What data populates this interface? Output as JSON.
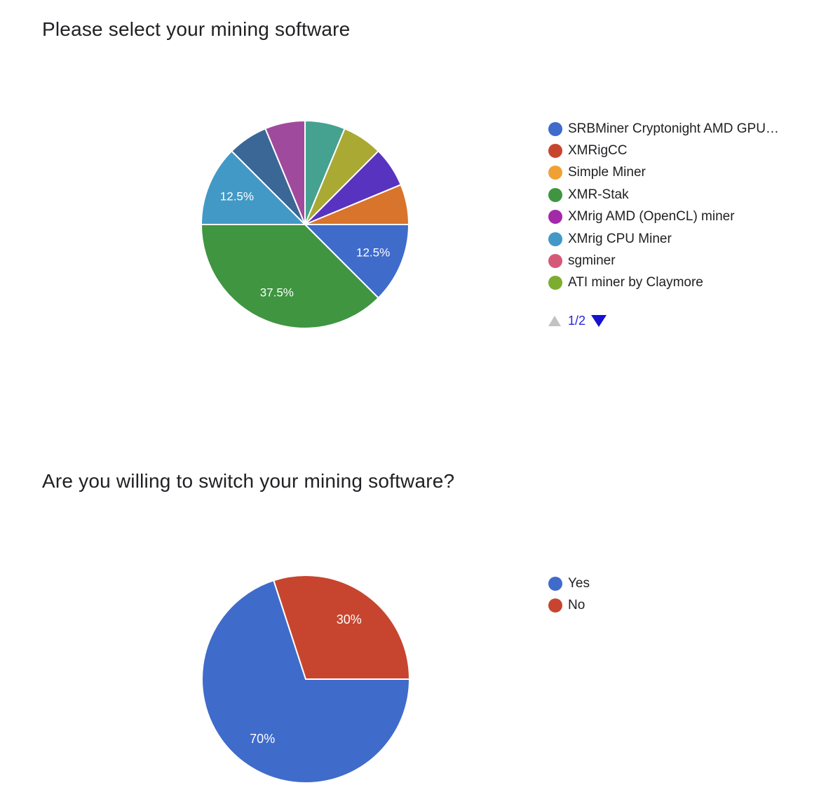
{
  "page": {
    "background": "#ffffff"
  },
  "charts": [
    {
      "title": "Please select your mining software",
      "legend": {
        "items": [
          {
            "label": "SRBMiner Cryptonight AMD GPU…",
            "color": "#3F6BCB"
          },
          {
            "label": "XMRigCC",
            "color": "#C7452E"
          },
          {
            "label": "Simple Miner",
            "color": "#F0A136"
          },
          {
            "label": "XMR-Stak",
            "color": "#3F9540"
          },
          {
            "label": "XMrig AMD (OpenCL) miner",
            "color": "#A229A8"
          },
          {
            "label": "XMrig CPU Miner",
            "color": "#4299C6"
          },
          {
            "label": "sgminer",
            "color": "#D65878"
          },
          {
            "label": "ATI miner by Claymore",
            "color": "#7DAD30"
          }
        ],
        "pagination": {
          "label": "1/2",
          "text_color": "#2525D6",
          "prev_arrow_color": "#C2C2C4",
          "next_arrow_color": "#1512D0"
        }
      }
    },
    {
      "title": "Are you willing to switch your mining software?",
      "legend": {
        "items": [
          {
            "label": "Yes",
            "color": "#3F6BCB"
          },
          {
            "label": "No",
            "color": "#C7452E"
          }
        ]
      }
    }
  ],
  "chart_data": [
    {
      "type": "pie",
      "title": "Please select your mining software",
      "legend_position": "right",
      "start_angle_deg": 90,
      "direction": "clockwise",
      "slice_label_color": "#ffffff",
      "slices": [
        {
          "label": "SRBMiner Cryptonight AMD GPU…",
          "value_pct": 12.5,
          "color": "#3F6BCB",
          "shown_label": "12.5%"
        },
        {
          "label": "XMR-Stak",
          "value_pct": 37.5,
          "color": "#3F9540",
          "shown_label": "37.5%"
        },
        {
          "label": "XMrig CPU Miner",
          "value_pct": 12.5,
          "color": "#4299C6",
          "shown_label": "12.5%"
        },
        {
          "label": "",
          "value_pct": 6.25,
          "color": "#3A6795",
          "shown_label": ""
        },
        {
          "label": "",
          "value_pct": 6.25,
          "color": "#A04A9D",
          "shown_label": ""
        },
        {
          "label": "",
          "value_pct": 6.25,
          "color": "#45A290",
          "shown_label": ""
        },
        {
          "label": "",
          "value_pct": 6.25,
          "color": "#A9A934",
          "shown_label": ""
        },
        {
          "label": "",
          "value_pct": 6.25,
          "color": "#5833BF",
          "shown_label": ""
        },
        {
          "label": "",
          "value_pct": 6.25,
          "color": "#D8742B",
          "shown_label": ""
        }
      ]
    },
    {
      "type": "pie",
      "title": "Are you willing to switch your mining software?",
      "legend_position": "right",
      "start_angle_deg": 90,
      "direction": "clockwise",
      "slice_label_color": "#ffffff",
      "slices": [
        {
          "label": "Yes",
          "value_pct": 70,
          "color": "#3F6BCB",
          "shown_label": "70%"
        },
        {
          "label": "No",
          "value_pct": 30,
          "color": "#C7452E",
          "shown_label": "30%"
        }
      ]
    }
  ]
}
